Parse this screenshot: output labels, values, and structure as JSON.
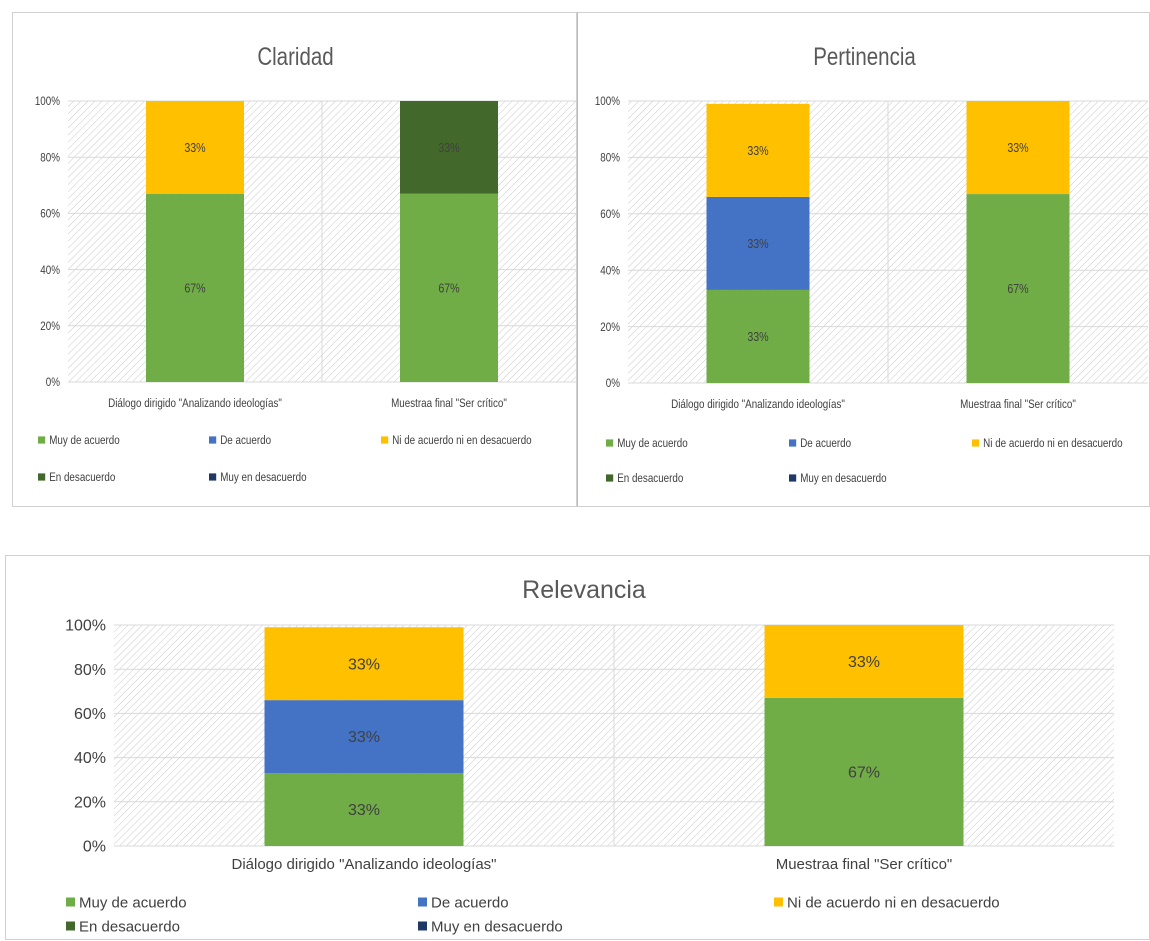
{
  "colors": {
    "Muy de acuerdo": "#70ad47",
    "De acuerdo": "#4472c4",
    "Ni de acuerdo ni en desacuerdo": "#ffc000",
    "En desacuerdo": "#43682b",
    "Muy en desacuerdo": "#203864"
  },
  "chart_data": [
    {
      "type": "bar",
      "stacked": true,
      "percent": true,
      "title": "Claridad",
      "categories": [
        "Diálogo dirigido \"Analizando ideologías\"",
        "Muestraa final \"Ser crítico\""
      ],
      "series": [
        {
          "name": "Muy de acuerdo",
          "values": [
            67,
            67
          ]
        },
        {
          "name": "De acuerdo",
          "values": [
            0,
            0
          ]
        },
        {
          "name": "Ni de acuerdo ni en desacuerdo",
          "values": [
            33,
            0
          ]
        },
        {
          "name": "En desacuerdo",
          "values": [
            0,
            33
          ]
        },
        {
          "name": "Muy en desacuerdo",
          "values": [
            0,
            0
          ]
        }
      ],
      "ylim": [
        0,
        100
      ],
      "yticks": [
        "0%",
        "20%",
        "40%",
        "60%",
        "80%",
        "100%"
      ],
      "grid": true,
      "legend": "bottom"
    },
    {
      "type": "bar",
      "stacked": true,
      "percent": true,
      "title": "Pertinencia",
      "categories": [
        "Diálogo dirigido \"Analizando ideologías\"",
        "Muestraa final \"Ser crítico\""
      ],
      "series": [
        {
          "name": "Muy de acuerdo",
          "values": [
            33,
            67
          ]
        },
        {
          "name": "De acuerdo",
          "values": [
            33,
            0
          ]
        },
        {
          "name": "Ni de acuerdo ni en desacuerdo",
          "values": [
            33,
            33
          ]
        },
        {
          "name": "En desacuerdo",
          "values": [
            0,
            0
          ]
        },
        {
          "name": "Muy en desacuerdo",
          "values": [
            0,
            0
          ]
        }
      ],
      "ylim": [
        0,
        100
      ],
      "yticks": [
        "0%",
        "20%",
        "40%",
        "60%",
        "80%",
        "100%"
      ],
      "grid": true,
      "legend": "bottom"
    },
    {
      "type": "bar",
      "stacked": true,
      "percent": true,
      "title": "Relevancia",
      "categories": [
        "Diálogo dirigido \"Analizando ideologías\"",
        "Muestraa final \"Ser crítico\""
      ],
      "series": [
        {
          "name": "Muy de acuerdo",
          "values": [
            33,
            67
          ]
        },
        {
          "name": "De acuerdo",
          "values": [
            33,
            0
          ]
        },
        {
          "name": "Ni de acuerdo ni en desacuerdo",
          "values": [
            33,
            33
          ]
        },
        {
          "name": "En desacuerdo",
          "values": [
            0,
            0
          ]
        },
        {
          "name": "Muy en desacuerdo",
          "values": [
            0,
            0
          ]
        }
      ],
      "ylim": [
        0,
        100
      ],
      "yticks": [
        "0%",
        "20%",
        "40%",
        "60%",
        "80%",
        "100%"
      ],
      "grid": true,
      "legend": "bottom"
    }
  ]
}
